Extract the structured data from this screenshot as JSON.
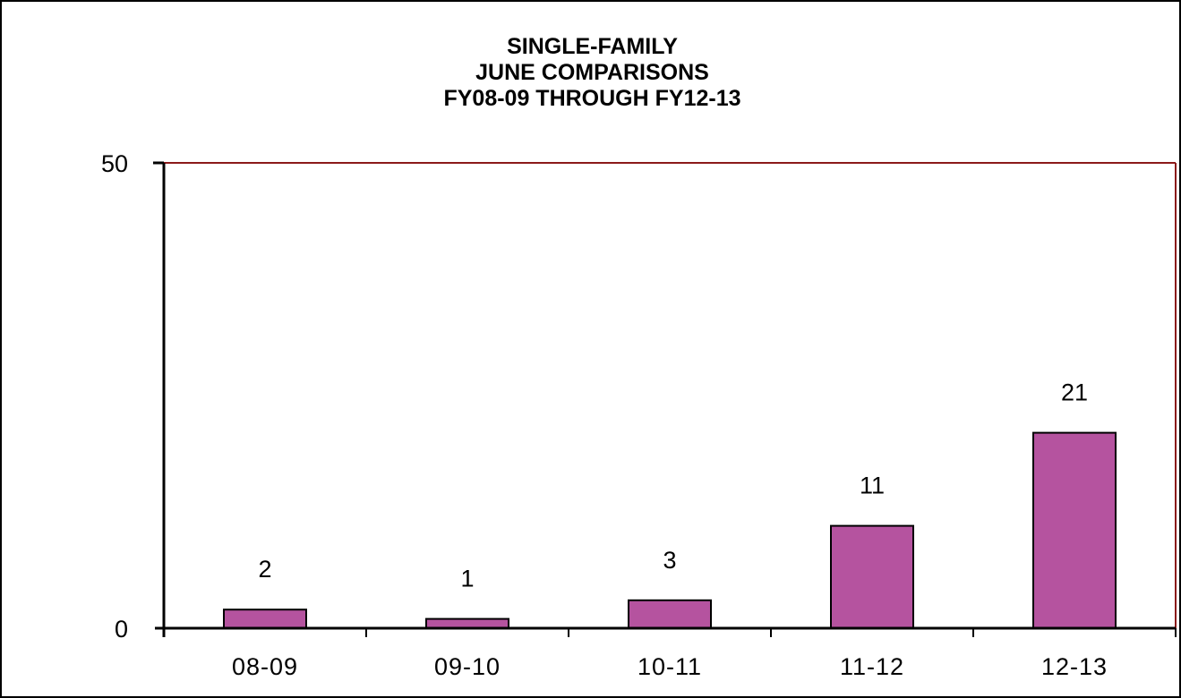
{
  "chart_data": {
    "type": "bar",
    "title_lines": [
      "SINGLE-FAMILY",
      "JUNE COMPARISONS",
      "FY08-09  THROUGH  FY12-13"
    ],
    "categories": [
      "08-09",
      "09-10",
      "10-11",
      "11-12",
      "12-13"
    ],
    "values": [
      2,
      1,
      3,
      11,
      21
    ],
    "data_labels": [
      "2",
      "1",
      "3",
      "11",
      "21"
    ],
    "ylim": [
      0,
      50
    ],
    "yticks": [
      "0",
      "50"
    ],
    "grid": false,
    "legend": "none",
    "colors": {
      "bar_fill": "#b5539f",
      "bar_stroke": "#000000",
      "plot_border": "#8b1a1a",
      "axis": "#000000"
    }
  }
}
